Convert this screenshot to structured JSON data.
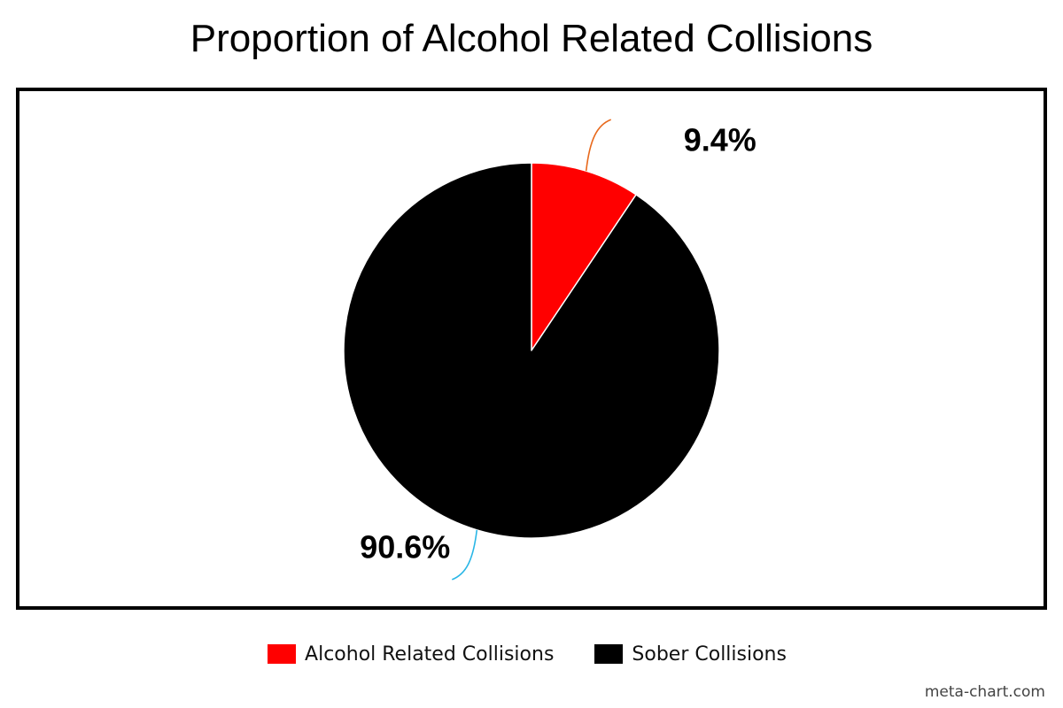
{
  "chart_data": {
    "type": "pie",
    "title": "Proportion of Alcohol Related Collisions",
    "categories": [
      "Alcohol Related Collisions",
      "Sober Collisions"
    ],
    "values": [
      9.4,
      90.6
    ],
    "labels": [
      "9.4%",
      "90.6%"
    ],
    "colors": [
      "#ff0000",
      "#000000"
    ],
    "leader_colors": [
      "#e8691c",
      "#29b6e6"
    ],
    "start_angle": "12 o'clock",
    "direction": "clockwise",
    "legend_position": "bottom-center"
  },
  "watermark": "meta-chart.com"
}
